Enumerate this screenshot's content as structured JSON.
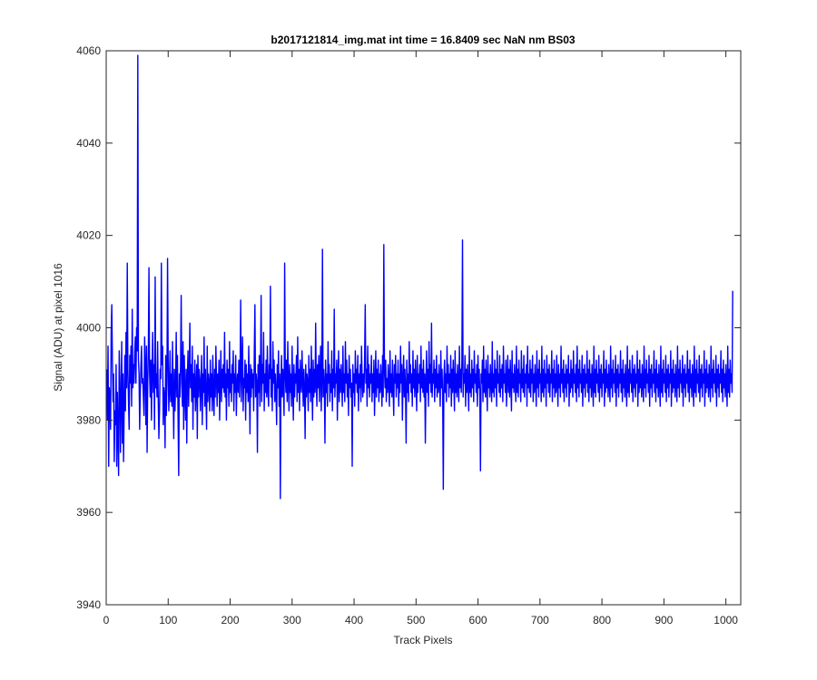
{
  "chart_data": {
    "type": "line",
    "title": "b2017121814_img.mat int time = 16.8409 sec  NaN nm BS03",
    "xlabel": "Track Pixels",
    "ylabel": "Signal (ADU) at pixel 1016",
    "xlim": [
      0,
      1024
    ],
    "ylim": [
      3940,
      4060
    ],
    "xticks": [
      0,
      100,
      200,
      300,
      400,
      500,
      600,
      700,
      800,
      900,
      1000
    ],
    "yticks": [
      3940,
      3960,
      3980,
      4000,
      4020,
      4040,
      4060
    ],
    "grid": false,
    "legend": "none",
    "line_color": "#0000ff",
    "axis_color": "#262626",
    "series": [
      {
        "name": "",
        "x_start": 1,
        "x_step": 1,
        "values": [
          3991,
          3980,
          3996,
          3970,
          3987,
          3985,
          3978,
          3999,
          4005,
          3993,
          3984,
          3990,
          3971,
          3982,
          3979,
          3992,
          3970,
          3986,
          3977,
          3968,
          3995,
          3989,
          3973,
          3984,
          3997,
          3975,
          3990,
          3971,
          3983,
          3994,
          3982,
          3999,
          3987,
          4014,
          3991,
          3984,
          3978,
          3994,
          3988,
          3996,
          3983,
          4004,
          3987,
          3992,
          3988,
          3995,
          3998,
          3988,
          4000,
          3995,
          4059,
          3993,
          3990,
          3978,
          3986,
          3992,
          3996,
          3988,
          3989,
          3985,
          3981,
          3998,
          3992,
          3979,
          3996,
          3973,
          3988,
          3995,
          4013,
          3990,
          3985,
          3993,
          3980,
          3991,
          3999,
          3986,
          3992,
          3978,
          4011,
          3987,
          3990,
          3985,
          3997,
          3984,
          3976,
          3982,
          3991,
          3989,
          4014,
          3992,
          3996,
          3979,
          3987,
          3985,
          3974,
          3994,
          3981,
          3988,
          4015,
          3993,
          3982,
          3987,
          3995,
          3984,
          3990,
          3983,
          3997,
          3986,
          3976,
          3991,
          3982,
          3988,
          3999,
          3985,
          3994,
          3980,
          3968,
          3990,
          3985,
          3992,
          4007,
          3988,
          3983,
          3997,
          3978,
          3994,
          3986,
          3980,
          3991,
          3975,
          3989,
          3995,
          3983,
          3990,
          4001,
          3987,
          3992,
          3984,
          3996,
          3978,
          3990,
          3985,
          3993,
          3982,
          3987,
          3992,
          3976,
          3994,
          3985,
          3991,
          3989,
          3982,
          3988,
          3994,
          3979,
          3990,
          3986,
          3998,
          3983,
          3991,
          3985,
          3978,
          3996,
          3984,
          3990,
          3988,
          3982,
          3993,
          3985,
          3990,
          3982,
          3994,
          3987,
          3981,
          3991,
          3985,
          3996,
          3989,
          3983,
          3990,
          3986,
          3993,
          3980,
          3988,
          3995,
          3984,
          3991,
          3987,
          3992,
          3986,
          3999,
          3985,
          3990,
          3980,
          3993,
          3987,
          3991,
          3983,
          3997,
          3986,
          3990,
          3984,
          3992,
          3988,
          3995,
          3982,
          3990,
          3986,
          3994,
          3981,
          3988,
          3990,
          3986,
          3993,
          3985,
          3990,
          4006,
          3984,
          3991,
          3998,
          3982,
          3989,
          3987,
          3993,
          3980,
          3992,
          3986,
          3990,
          3984,
          3996,
          3988,
          3977,
          3992,
          3985,
          3991,
          3987,
          3990,
          3982,
          3995,
          4005,
          3985,
          3990,
          3988,
          3973,
          3992,
          3986,
          3994,
          3983,
          3990,
          4007,
          3984,
          3992,
          3988,
          3999,
          3982,
          3990,
          3986,
          3993,
          3985,
          3996,
          3987,
          3983,
          3992,
          3989,
          4009,
          3985,
          3991,
          3982,
          3997,
          3988,
          3993,
          3984,
          3990,
          3986,
          3979,
          3992,
          3987,
          3995,
          3983,
          3990,
          3963,
          3988,
          3994,
          3985,
          3991,
          3987,
          3981,
          4014,
          3990,
          3986,
          3993,
          3984,
          3997,
          3988,
          3982,
          3992,
          3986,
          3990,
          3983,
          3996,
          3987,
          3980,
          3992,
          3985,
          3990,
          3988,
          3994,
          3984,
          3998,
          3986,
          3991,
          3982,
          3993,
          3988,
          3986,
          3995,
          3989,
          3983,
          3991,
          3987,
          3976,
          3992,
          3985,
          3990,
          3988,
          3982,
          3994,
          3986,
          3991,
          3984,
          3996,
          3988,
          3980,
          3993,
          3985,
          3991,
          3986,
          4001,
          3988,
          3983,
          3992,
          3987,
          3994,
          3984,
          3990,
          3996,
          3982,
          3989,
          4017,
          3985,
          3991,
          3988,
          3975,
          3993,
          3986,
          3990,
          3983,
          3997,
          3988,
          3992,
          3984,
          3990,
          3986,
          3995,
          3982,
          3991,
          3987,
          4004,
          3985,
          3990,
          3988,
          3993,
          3980,
          3989,
          3995,
          3984,
          3991,
          3986,
          3992,
          3988,
          3983,
          3996,
          3986,
          3990,
          3984,
          3997,
          3988,
          3993,
          3985,
          3990,
          3981,
          3994,
          3987,
          3991,
          3985,
          3988,
          3970,
          3992,
          3986,
          3990,
          3983,
          3995,
          3988,
          3991,
          3986,
          3994,
          3982,
          3990,
          3987,
          3992,
          3984,
          3996,
          3989,
          3985,
          3990,
          3986,
          3993,
          4005,
          3988,
          3991,
          3983,
          3996,
          3987,
          3992,
          3985,
          3990,
          3988,
          3994,
          3984,
          3990,
          3986,
          3993,
          3981,
          3988,
          3995,
          3985,
          3991,
          3987,
          3993,
          3984,
          3990,
          3986,
          3992,
          3988,
          3983,
          3994,
          3985,
          4018,
          3991,
          3987,
          3993,
          3984,
          3989,
          3986,
          3992,
          3988,
          3983,
          3995,
          3986,
          3990,
          3985,
          3993,
          3987,
          3981,
          3992,
          3988,
          3994,
          3985,
          3990,
          3987,
          3993,
          3983,
          3990,
          3986,
          3996,
          3988,
          3992,
          3980,
          3989,
          3994,
          3985,
          3991,
          3987,
          3975,
          3993,
          3986,
          3990,
          3984,
          3997,
          3988,
          3992,
          3986,
          3990,
          3983,
          3995,
          3987,
          3991,
          3985,
          3993,
          3988,
          3982,
          3994,
          3986,
          3990,
          3988,
          3992,
          3984,
          3996,
          3987,
          3991,
          3986,
          3993,
          3985,
          3990,
          3975,
          3988,
          3995,
          3986,
          3991,
          3983,
          3997,
          3988,
          3992,
          3986,
          4001,
          3985,
          3990,
          3988,
          3993,
          3984,
          3991,
          3987,
          3994,
          3985,
          3990,
          3986,
          3992,
          3988,
          3983,
          3995,
          3987,
          3991,
          3985,
          3965,
          3989,
          3993,
          3986,
          3990,
          3984,
          3996,
          3988,
          3992,
          3985,
          3990,
          3987,
          3994,
          3983,
          3991,
          3986,
          3993,
          3988,
          3982,
          3995,
          3986,
          3990,
          3985,
          3992,
          3988,
          3984,
          3996,
          3987,
          3991,
          3986,
          3993,
          4019,
          3985,
          3990,
          3988,
          3994,
          3983,
          3991,
          3986,
          3992,
          3988,
          3982,
          3996,
          3986,
          3990,
          3985,
          3993,
          3987,
          3991,
          3984,
          3995,
          3988,
          3990,
          3986,
          3992,
          3983,
          3994,
          3987,
          3991,
          3985,
          3969,
          3990,
          3988,
          3993,
          3984,
          3996,
          3986,
          3991,
          3985,
          3993,
          3988,
          3982,
          3994,
          3987,
          3990,
          3985,
          3992,
          3988,
          3984,
          3997,
          3986,
          3990,
          3985,
          3993,
          3987,
          3991,
          3983,
          3995,
          3988,
          3990,
          3986,
          3994,
          3985,
          3991,
          3987,
          3992,
          3984,
          3996,
          3988,
          3990,
          3986,
          3993,
          3983,
          3989,
          3994,
          3986,
          3991,
          3985,
          3993,
          3988,
          3982,
          3995,
          3987,
          3990,
          3986,
          3992,
          3988,
          3984,
          3996,
          3986,
          3991,
          3985,
          3993,
          3988,
          3990,
          3984,
          3995,
          3987,
          3991,
          3986,
          3994,
          3985,
          3990,
          3988,
          3992,
          3983,
          3996,
          3987,
          3990,
          3986,
          3993,
          3985,
          3991,
          3988,
          3994,
          3984,
          3990,
          3986,
          3992,
          3988,
          3983,
          3995,
          3987,
          3991,
          3985,
          3993,
          3988,
          3990,
          3984,
          3996,
          3986,
          3991,
          3985,
          3993,
          3987,
          3990,
          3983,
          3994,
          3988,
          3991,
          3986,
          3992,
          3985,
          3990,
          3988,
          3995,
          3984,
          3991,
          3987,
          3993,
          3985,
          3990,
          3986,
          3994,
          3988,
          3983,
          3992,
          3987,
          3990,
          3985,
          3996,
          3988,
          3991,
          3986,
          3993,
          3984,
          3990,
          3987,
          3992,
          3985,
          3991,
          3988,
          3994,
          3983,
          3990,
          3986,
          3993,
          3987,
          3991,
          3985,
          3995,
          3988,
          3990,
          3986,
          3992,
          3984,
          3996,
          3987,
          3991,
          3985,
          3993,
          3988,
          3990,
          3986,
          3994,
          3983,
          3991,
          3987,
          3992,
          3985,
          3990,
          3988,
          3995,
          3986,
          3991,
          3984,
          3993,
          3987,
          3990,
          3985,
          3992,
          3988,
          3983,
          3996,
          3986,
          3991,
          3985,
          3993,
          3988,
          3990,
          3986,
          3994,
          3984,
          3991,
          3987,
          3992,
          3985,
          3990,
          3988,
          3995,
          3983,
          3991,
          3986,
          3993,
          3987,
          3990,
          3985,
          3992,
          3988,
          3984,
          3996,
          3987,
          3991,
          3985,
          3993,
          3988,
          3990,
          3986,
          3994,
          3983,
          3991,
          3987,
          3992,
          3985,
          3990,
          3988,
          3995,
          3986,
          3991,
          3984,
          3993,
          3987,
          3990,
          3985,
          3992,
          3988,
          3983,
          3996,
          3986,
          3991,
          3985,
          3993,
          3988,
          3990,
          3986,
          3994,
          3984,
          3991,
          3987,
          3992,
          3985,
          3990,
          3988,
          3995,
          3983,
          3991,
          3986,
          3993,
          3987,
          3990,
          3985,
          3992,
          3988,
          3984,
          3996,
          3987,
          3991,
          3985,
          3993,
          3988,
          3990,
          3986,
          3994,
          3983,
          3991,
          3987,
          3992,
          3985,
          3990,
          3988,
          3995,
          3986,
          3991,
          3984,
          3993,
          3987,
          3990,
          3985,
          3992,
          3988,
          3983,
          3996,
          3986,
          3991,
          3985,
          3993,
          3988,
          3990,
          3986,
          3994,
          3984,
          3991,
          3987,
          3992,
          3985,
          3990,
          3988,
          3995,
          3983,
          3991,
          3986,
          3993,
          3987,
          3990,
          3985,
          3992,
          3988,
          3984,
          3996,
          3987,
          3991,
          3985,
          3993,
          3988,
          3990,
          3986,
          3994,
          3983,
          3991,
          3987,
          3992,
          3985,
          3990,
          3988,
          3995,
          3986,
          3991,
          3984,
          3993,
          3987,
          3990,
          3985,
          3992,
          3988,
          3983,
          3996,
          3986,
          3991,
          3985,
          3993,
          3988,
          3990,
          3986,
          3994,
          3984,
          3991,
          3987,
          3992,
          3985,
          3990,
          3988,
          3995,
          3983,
          3991,
          3986,
          3993,
          3987,
          3990,
          3985,
          3992,
          3988,
          3984,
          3996,
          3987,
          3991,
          3985,
          3993,
          3988,
          3990,
          3986,
          3994,
          3983,
          3991,
          3987,
          3992,
          3985,
          3990,
          3988,
          3995,
          3986,
          3991,
          3984,
          3993,
          3987,
          3990,
          3985,
          3992,
          3988,
          3983,
          3996,
          3986,
          3991,
          3985,
          3993,
          3988,
          3990,
          3986,
          4008
        ]
      }
    ]
  }
}
